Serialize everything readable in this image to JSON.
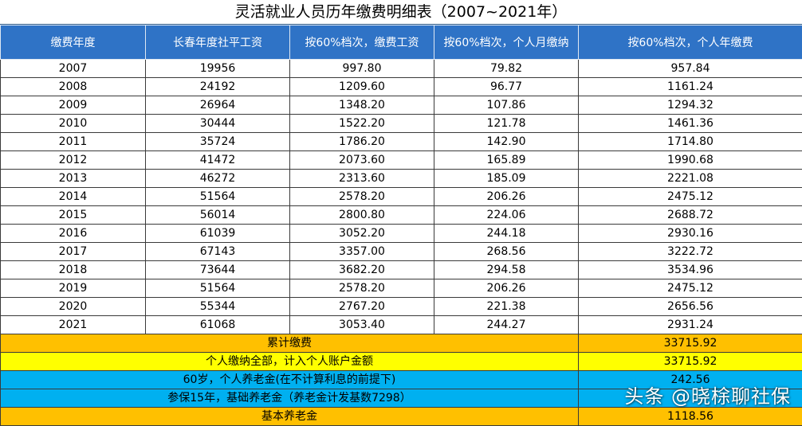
{
  "title": "灵活就业人员历年缴费明细表（2007~2021年）",
  "columns": [
    "缴费年度",
    "长春年度社平工资",
    "按60%档次，缴费工资",
    "按60%档次，个人月缴纳",
    "按60%档次，个人年缴费"
  ],
  "rows": [
    [
      "2007",
      "19956",
      "997.80",
      "79.82",
      "957.84"
    ],
    [
      "2008",
      "24192",
      "1209.60",
      "96.77",
      "1161.24"
    ],
    [
      "2009",
      "26964",
      "1348.20",
      "107.86",
      "1294.32"
    ],
    [
      "2010",
      "30444",
      "1522.20",
      "121.78",
      "1461.36"
    ],
    [
      "2011",
      "35724",
      "1786.20",
      "142.90",
      "1714.80"
    ],
    [
      "2012",
      "41472",
      "2073.60",
      "165.89",
      "1990.68"
    ],
    [
      "2013",
      "46272",
      "2313.60",
      "185.09",
      "2221.08"
    ],
    [
      "2014",
      "51564",
      "2578.20",
      "206.26",
      "2475.12"
    ],
    [
      "2015",
      "56014",
      "2800.80",
      "224.06",
      "2688.72"
    ],
    [
      "2016",
      "61039",
      "3052.20",
      "244.18",
      "2930.16"
    ],
    [
      "2017",
      "67143",
      "3357.00",
      "268.56",
      "3222.72"
    ],
    [
      "2018",
      "73644",
      "3682.20",
      "294.58",
      "3534.96"
    ],
    [
      "2019",
      "51564",
      "2578.20",
      "206.26",
      "2475.12"
    ],
    [
      "2020",
      "55344",
      "2767.20",
      "221.38",
      "2656.56"
    ],
    [
      "2021",
      "61068",
      "3053.40",
      "244.27",
      "2931.24"
    ]
  ],
  "summary": [
    {
      "label": "累计缴费",
      "value": "33715.92",
      "color": "#ffc000"
    },
    {
      "label": "个人缴纳全部，计入个人账户金额",
      "value": "33715.92",
      "color": "#ffff00"
    },
    {
      "label": "60岁，个人养老金(在不计算利息的前提下)",
      "value": "242.56",
      "color": "#00b0f0"
    },
    {
      "label": "参保15年，基础养老金（养老金计发基数7298）",
      "value": "",
      "color": "#00b0f0"
    },
    {
      "label": "基本养老金",
      "value": "1118.56",
      "color": "#ffc000"
    }
  ],
  "watermark": "头条 @晓梌聊社保"
}
